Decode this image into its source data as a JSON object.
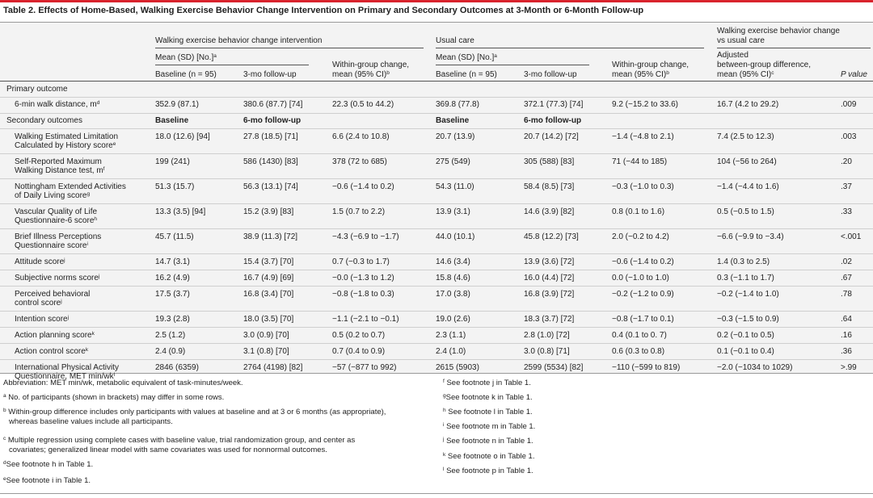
{
  "title": "Table 2. Effects of Home-Based, Walking Exercise Behavior Change Intervention on Primary and Secondary Outcomes at 3-Month or 6-Month Follow-up",
  "header": {
    "group_intervention": "Walking exercise behavior change intervention",
    "group_usual": "Usual care",
    "group_between_1": "Walking exercise behavior change",
    "group_between_2": "vs usual care",
    "mean_sd_n": "Mean (SD) [No.]",
    "mean_sup": "a",
    "baseline_n": "Baseline (n = 95)",
    "followup_3mo": "3-mo follow-up",
    "within_1": "Within-group change,",
    "within_2": "mean (95% CI)",
    "within_sup": "b",
    "adjusted_1": "Adjusted",
    "adjusted_2": "between-group difference,",
    "adjusted_3": "mean (95% CI)",
    "adjusted_sup": "c",
    "p_value": "P value"
  },
  "sections": {
    "primary": "Primary outcome",
    "secondary": "Secondary outcomes",
    "sec_baseline": "Baseline",
    "sec_followup": "6-mo follow-up",
    "sec_usual_baseline": "Baseline",
    "sec_usual_followup": "6-mo follow-up"
  },
  "rows": [
    {
      "label": [
        "6-min walk distance, m"
      ],
      "sup": "d",
      "int_base": "352.9 (87.1)",
      "int_fu": "380.6 (87.7) [74]",
      "int_within": "22.3 (0.5 to 44.2)",
      "uc_base": "369.8 (77.8)",
      "uc_fu": "372.1 (77.3) [74]",
      "uc_within": "9.2 (−15.2 to 33.6)",
      "diff": "16.7 (4.2 to 29.2)",
      "p": ".009"
    },
    {
      "label": [
        "Walking Estimated Limitation",
        "Calculated by History score"
      ],
      "sup": "e",
      "int_base": "18.0 (12.6) [94]",
      "int_fu": "27.8 (18.5) [71]",
      "int_within": "6.6 (2.4 to 10.8)",
      "uc_base": "20.7 (13.9)",
      "uc_fu": "20.7 (14.2) [72]",
      "uc_within": "−1.4 (−4.8 to 2.1)",
      "diff": "7.4 (2.5 to 12.3)",
      "p": ".003"
    },
    {
      "label": [
        "Self-Reported Maximum",
        "Walking Distance test, m"
      ],
      "sup": "f",
      "int_base": "199 (241)",
      "int_fu": "586 (1430) [83]",
      "int_within": "378 (72 to 685)",
      "uc_base": "275 (549)",
      "uc_fu": "305 (588) [83]",
      "uc_within": "71 (−44 to 185)",
      "diff": "104 (−56 to 264)",
      "p": ".20"
    },
    {
      "label": [
        "Nottingham Extended Activities",
        "of Daily Living score"
      ],
      "sup": "g",
      "int_base": "51.3 (15.7)",
      "int_fu": "56.3 (13.1) [74]",
      "int_within": "−0.6 (−1.4 to 0.2)",
      "uc_base": "54.3 (11.0)",
      "uc_fu": "58.4 (8.5) [73]",
      "uc_within": "−0.3 (−1.0 to 0.3)",
      "diff": "−1.4 (−4.4 to 1.6)",
      "p": ".37"
    },
    {
      "label": [
        "Vascular Quality of Life",
        "Questionnaire-6 score"
      ],
      "sup": "h",
      "int_base": "13.3 (3.5) [94]",
      "int_fu": "15.2 (3.9) [83]",
      "int_within": "1.5 (0.7 to 2.2)",
      "uc_base": "13.9 (3.1)",
      "uc_fu": "14.6 (3.9) [82]",
      "uc_within": "0.8 (0.1 to 1.6)",
      "diff": "0.5 (−0.5 to 1.5)",
      "p": ".33"
    },
    {
      "label": [
        "Brief Illness Perceptions",
        "Questionnaire score"
      ],
      "sup": "i",
      "int_base": "45.7 (11.5)",
      "int_fu": "38.9 (11.3) [72]",
      "int_within": "−4.3 (−6.9 to −1.7)",
      "uc_base": "44.0 (10.1)",
      "uc_fu": "45.8 (12.2) [73]",
      "uc_within": "2.0 (−0.2 to 4.2)",
      "diff": "−6.6 (−9.9 to −3.4)",
      "p": "<.001"
    },
    {
      "label": [
        "Attitude score"
      ],
      "sup": "j",
      "int_base": "14.7 (3.1)",
      "int_fu": "15.4 (3.7) [70]",
      "int_within": "0.7 (−0.3 to 1.7)",
      "uc_base": "14.6 (3.4)",
      "uc_fu": "13.9 (3.6) [72]",
      "uc_within": "−0.6 (−1.4 to 0.2)",
      "diff": "1.4 (0.3 to 2.5)",
      "p": ".02"
    },
    {
      "label": [
        "Subjective norms score"
      ],
      "sup": "j",
      "int_base": "16.2 (4.9)",
      "int_fu": "16.7 (4.9) [69]",
      "int_within": "−0.0 (−1.3 to 1.2)",
      "uc_base": "15.8 (4.6)",
      "uc_fu": "16.0 (4.4) [72]",
      "uc_within": "0.0 (−1.0 to 1.0)",
      "diff": "0.3 (−1.1 to 1.7)",
      "p": ".67"
    },
    {
      "label": [
        "Perceived behavioral",
        "control score"
      ],
      "sup": "j",
      "int_base": "17.5 (3.7)",
      "int_fu": "16.8 (3.4) [70]",
      "int_within": "−0.8 (−1.8 to 0.3)",
      "uc_base": "17.0 (3.8)",
      "uc_fu": "16.8 (3.9) [72]",
      "uc_within": "−0.2 (−1.2 to 0.9)",
      "diff": "−0.2 (−1.4 to 1.0)",
      "p": ".78"
    },
    {
      "label": [
        "Intention score"
      ],
      "sup": "j",
      "int_base": "19.3 (2.8)",
      "int_fu": "18.0 (3.5) [70]",
      "int_within": "−1.1 (−2.1 to −0.1)",
      "uc_base": "19.0 (2.6)",
      "uc_fu": "18.3 (3.7) [72]",
      "uc_within": "−0.8 (−1.7 to 0.1)",
      "diff": "−0.3 (−1.5 to 0.9)",
      "p": ".64"
    },
    {
      "label": [
        "Action planning score"
      ],
      "sup": "k",
      "int_base": "2.5 (1.2)",
      "int_fu": "3.0 (0.9) [70]",
      "int_within": "0.5 (0.2 to 0.7)",
      "uc_base": "2.3 (1.1)",
      "uc_fu": "2.8 (1.0) [72]",
      "uc_within": "0.4 (0.1 to 0. 7)",
      "diff": "0.2 (−0.1 to 0.5)",
      "p": ".16"
    },
    {
      "label": [
        "Action control score"
      ],
      "sup": "k",
      "int_base": "2.4 (0.9)",
      "int_fu": "3.1 (0.8) [70]",
      "int_within": "0.7 (0.4 to 0.9)",
      "uc_base": "2.4 (1.0)",
      "uc_fu": "3.0 (0.8) [71]",
      "uc_within": "0.6 (0.3 to 0.8)",
      "diff": "0.1 (−0.1 to 0.4)",
      "p": ".36"
    },
    {
      "label": [
        "International Physical Activity",
        "Questionnaire, MET min/wk"
      ],
      "sup": "l",
      "int_base": "2846 (6359)",
      "int_fu": "2764 (4198) [82]",
      "int_within": "−57 (−877 to 992)",
      "uc_base": "2615 (5903)",
      "uc_fu": "2599 (5534) [82]",
      "uc_within": "−110 (−599 to 819)",
      "diff": "−2.0 (−1034 to 1029)",
      "p": ">.99"
    }
  ],
  "footnotes": {
    "abbrev": "Abbreviation: MET min/wk, metabolic equivalent of task-minutes/week.",
    "a": {
      "mark": "a",
      "text": "No. of participants (shown in brackets) may differ in some rows."
    },
    "b": {
      "mark": "b",
      "text1": "Within-group difference includes only participants with values at baseline and at 3 or 6 months (as appropriate),",
      "text2": "whereas baseline values include all participants."
    },
    "c": {
      "mark": "c",
      "text1": "Multiple regression using complete cases with baseline value, trial randomization group, and center as",
      "text2": "covariates; generalized linear model with same covariates was used for nonnormal outcomes."
    },
    "d": {
      "mark": "d",
      "text": "See footnote h in Table 1."
    },
    "e": {
      "mark": "e",
      "text": "See footnote i in Table 1."
    },
    "f": {
      "mark": "f",
      "text": "See footnote j in Table 1."
    },
    "g": {
      "mark": "g",
      "text": "See footnote k in Table 1."
    },
    "h": {
      "mark": "h",
      "text": "See footnote l in Table 1."
    },
    "i": {
      "mark": "i",
      "text": "See footnote m in Table 1."
    },
    "j": {
      "mark": "j",
      "text": "See footnote n in Table 1."
    },
    "k": {
      "mark": "k",
      "text": "See footnote o in Table 1."
    },
    "l": {
      "mark": "l",
      "text": "See footnote p in Table 1."
    }
  }
}
